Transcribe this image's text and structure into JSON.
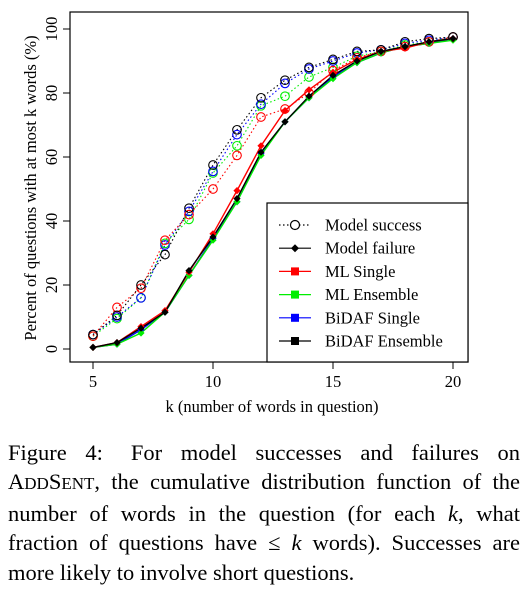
{
  "chart_data": {
    "type": "line",
    "xlabel": "k (number of words in question)",
    "ylabel": "Percent of questions with at most k words (%)",
    "xlim": [
      5,
      20
    ],
    "ylim": [
      0,
      100
    ],
    "xticks": [
      5,
      10,
      15,
      20
    ],
    "yticks": [
      0,
      20,
      40,
      60,
      80,
      100
    ],
    "grid": false,
    "legend_position": "bottom-right",
    "x": [
      5,
      6,
      7,
      8,
      9,
      10,
      11,
      12,
      13,
      14,
      15,
      16,
      17,
      18,
      19,
      20
    ],
    "series": [
      {
        "name": "ML Single",
        "group": "success",
        "color": "#ff0000",
        "values": [
          4,
          13,
          19,
          34,
          42,
          50,
          60.5,
          72.5,
          75,
          80,
          87,
          91,
          93,
          94.5,
          96,
          97.5
        ]
      },
      {
        "name": "ML Ensemble",
        "group": "success",
        "color": "#00ee00",
        "values": [
          4,
          9.5,
          16,
          33,
          40.5,
          55,
          63.5,
          76,
          79,
          85,
          88,
          91.5,
          93,
          95,
          96,
          97.5
        ]
      },
      {
        "name": "BiDAF Single",
        "group": "success",
        "color": "#0000ff",
        "values": [
          4.5,
          10,
          16,
          32.5,
          43,
          55.5,
          67,
          76.5,
          83,
          87.5,
          90,
          92.5,
          93.5,
          95.5,
          96.5,
          97.5
        ]
      },
      {
        "name": "BiDAF Ensemble",
        "group": "success",
        "color": "#000000",
        "values": [
          4.5,
          10.5,
          20,
          29.5,
          44,
          57.5,
          68.5,
          78.5,
          84,
          88,
          90.5,
          93,
          93.5,
          96,
          97,
          97.5
        ]
      },
      {
        "name": "ML Single",
        "group": "failure",
        "color": "#ff0000",
        "values": [
          0.5,
          2,
          7,
          12,
          24,
          36,
          49.5,
          63.5,
          74.5,
          81,
          86.5,
          90.5,
          93,
          94,
          96,
          97
        ]
      },
      {
        "name": "ML Ensemble",
        "group": "failure",
        "color": "#00ee00",
        "values": [
          0.5,
          1.5,
          5,
          11.5,
          23,
          34,
          46,
          60.5,
          71,
          78.5,
          84.5,
          89.5,
          92.5,
          94.5,
          95.5,
          96.5
        ]
      },
      {
        "name": "BiDAF Single",
        "group": "failure",
        "color": "#0000ff",
        "values": [
          0.5,
          1.5,
          6,
          11.5,
          23,
          34.5,
          46,
          61,
          71,
          78.5,
          85,
          89.5,
          92.5,
          94.5,
          95.5,
          97
        ]
      },
      {
        "name": "BiDAF Ensemble",
        "group": "failure",
        "color": "#000000",
        "values": [
          0.5,
          2,
          6.5,
          11.5,
          24.5,
          35,
          47,
          61.5,
          71,
          79,
          85.5,
          90,
          93,
          94.5,
          96,
          97
        ]
      }
    ],
    "legend": [
      {
        "label": "Model success",
        "marker": "open-circle",
        "line": "dotted",
        "color": "#000000"
      },
      {
        "label": "Model failure",
        "marker": "filled-diamond",
        "line": "solid",
        "color": "#000000"
      },
      {
        "label": "ML Single",
        "marker": "filled-square",
        "line": "solid",
        "color": "#ff0000"
      },
      {
        "label": "ML Ensemble",
        "marker": "filled-square",
        "line": "solid",
        "color": "#00ee00"
      },
      {
        "label": "BiDAF Single",
        "marker": "filled-square",
        "line": "solid",
        "color": "#0000ff"
      },
      {
        "label": "BiDAF Ensemble",
        "marker": "filled-square",
        "line": "solid",
        "color": "#000000"
      }
    ]
  },
  "caption": {
    "label": "Figure 4:",
    "p1": "For model successes and failures on",
    "addsent_a": "A",
    "addsent_b": "DD",
    "addsent_c": "S",
    "addsent_d": "ENT",
    "p2": ", the cumulative distribution function of the number of words in the question (for each ",
    "k1": "k",
    "p3": ", what fraction of questions have ≤ ",
    "k2": "k",
    "p4": " words). Successes are more likely to involve short questions."
  }
}
